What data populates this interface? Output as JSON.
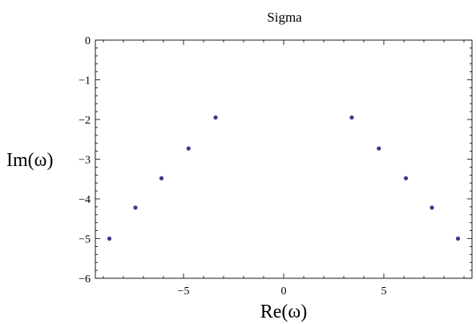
{
  "chart_data": {
    "type": "scatter",
    "title": "Sigma",
    "xlabel": "Re(ω)",
    "ylabel": "Im(ω)",
    "xlim": [
      -9.4,
      9.4
    ],
    "ylim": [
      -6,
      0
    ],
    "x_ticks": [
      -5,
      0,
      5
    ],
    "y_ticks": [
      0,
      -1,
      -2,
      -3,
      -4,
      -5,
      -6
    ],
    "x_tick_labels": [
      "−5",
      "0",
      "5"
    ],
    "y_tick_labels": [
      "0",
      "−1",
      "−2",
      "−3",
      "−4",
      "−5",
      "−6"
    ],
    "grid": false,
    "point_color": "#3d3a8c",
    "series": [
      {
        "x": [
          -8.7,
          -7.4,
          -6.1,
          -4.75,
          -3.4,
          3.4,
          4.75,
          6.1,
          7.4,
          8.7
        ],
        "y": [
          -5.0,
          -4.22,
          -3.48,
          -2.73,
          -1.95,
          -1.95,
          -2.73,
          -3.48,
          -4.22,
          -5.0
        ]
      }
    ]
  }
}
